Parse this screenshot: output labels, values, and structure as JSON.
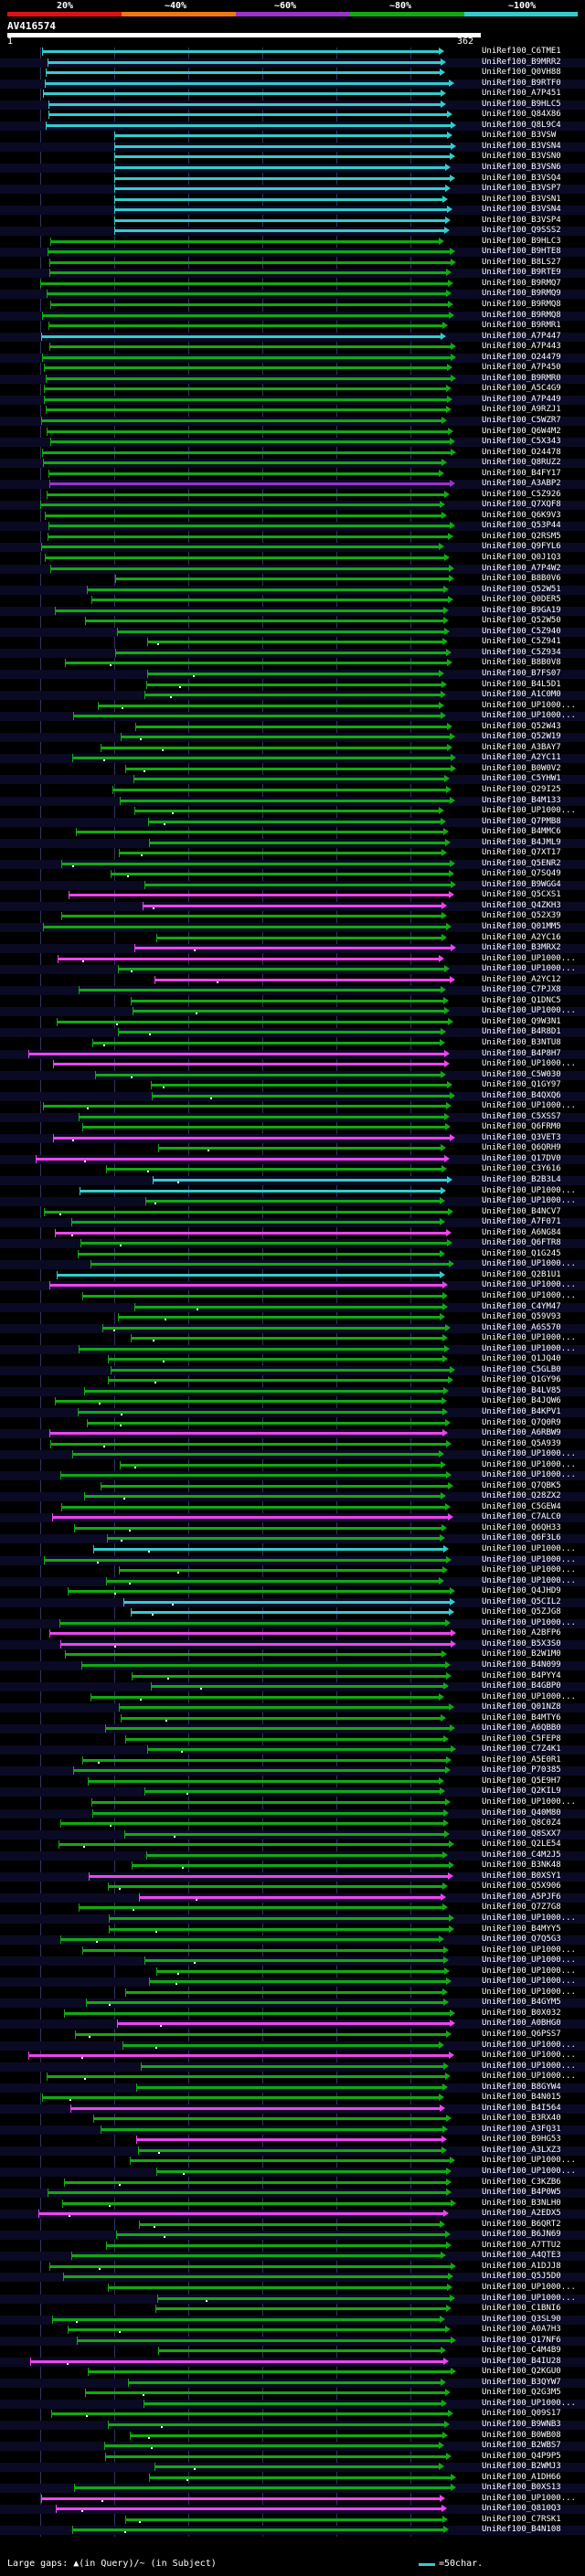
{
  "scale": {
    "labels": [
      "20%",
      "~40%",
      "~60%",
      "~80%",
      "~100%"
    ],
    "colors": [
      "#dd1111",
      "#ee7711",
      "#9933cc",
      "#11aa11",
      "#33cccc"
    ]
  },
  "query": {
    "name": "AV416574",
    "start": "1",
    "end": "362"
  },
  "legend": {
    "left_text": "Large gaps: ▲(in Query)/~ (in Subject)",
    "right_text": "=50char."
  },
  "hits": [
    {
      "label": "UniRef100_C6TME1",
      "color": "#33cccc"
    },
    {
      "label": "UniRef100_B9MRR2",
      "color": "#33cccc"
    },
    {
      "label": "UniRef100_Q0VH88",
      "color": "#33cccc"
    },
    {
      "label": "UniRef100_B9RTF0",
      "color": "#33cccc"
    },
    {
      "label": "UniRef100_A7P451",
      "color": "#33cccc"
    },
    {
      "label": "UniRef100_B9HLC5",
      "color": "#33cccc"
    },
    {
      "label": "UniRef100_Q84X86",
      "color": "#33cccc"
    },
    {
      "label": "UniRef100_Q8L9C4",
      "color": "#33cccc"
    },
    {
      "label": "UniRef100_B3VSW",
      "color": "#33cccc"
    },
    {
      "label": "UniRef100_B3VSN4",
      "color": "#33cccc"
    },
    {
      "label": "UniRef100_B3VSN0",
      "color": "#33cccc"
    },
    {
      "label": "UniRef100_B3VSN6",
      "color": "#33cccc"
    },
    {
      "label": "UniRef100_B3VSQ4",
      "color": "#33cccc"
    },
    {
      "label": "UniRef100_B3VSP7",
      "color": "#33cccc"
    },
    {
      "label": "UniRef100_B3VSN1",
      "color": "#33cccc"
    },
    {
      "label": "UniRef100_B3VSN4",
      "color": "#33cccc"
    },
    {
      "label": "UniRef100_B3VSP4",
      "color": "#33cccc"
    },
    {
      "label": "UniRef100_Q9SSS2",
      "color": "#33cccc"
    },
    {
      "label": "UniRef100_B9HLC3",
      "color": "#11aa11"
    },
    {
      "label": "UniRef100_B9HTE8",
      "color": "#11aa11"
    },
    {
      "label": "UniRef100_B8LS27",
      "color": "#11aa11"
    },
    {
      "label": "UniRef100_B9RTE9",
      "color": "#11aa11"
    },
    {
      "label": "UniRef100_B9RMQ7",
      "color": "#11aa11"
    },
    {
      "label": "UniRef100_B9RMQ9",
      "color": "#11aa11"
    },
    {
      "label": "UniRef100_B9RMQ8",
      "color": "#11aa11"
    },
    {
      "label": "UniRef100_B9RMQ8",
      "color": "#11aa11"
    },
    {
      "label": "UniRef100_B9RMR1",
      "color": "#11aa11"
    },
    {
      "label": "UniRef100_A7P447",
      "color": "#33cccc"
    },
    {
      "label": "UniRef100_A7P443",
      "color": "#11aa11"
    },
    {
      "label": "UniRef100_O24479",
      "color": "#11aa11"
    },
    {
      "label": "UniRef100_A7P450",
      "color": "#11aa11"
    },
    {
      "label": "UniRef100_B9RMR0",
      "color": "#11aa11"
    },
    {
      "label": "UniRef100_A5C4G9",
      "color": "#11aa11"
    },
    {
      "label": "UniRef100_A7P449",
      "color": "#11aa11"
    },
    {
      "label": "UniRef100_A9RZJ1",
      "color": "#11aa11"
    },
    {
      "label": "UniRef100_C5WZR7",
      "color": "#11aa11"
    },
    {
      "label": "UniRef100_Q6W4M2",
      "color": "#11aa11"
    },
    {
      "label": "UniRef100_C5X343",
      "color": "#11aa11"
    },
    {
      "label": "UniRef100_O24478",
      "color": "#11aa11"
    },
    {
      "label": "UniRef100_Q8RUZ2",
      "color": "#11aa11"
    },
    {
      "label": "UniRef100_B4FY17",
      "color": "#11aa11"
    },
    {
      "label": "UniRef100_A3ABP2",
      "color": "#9933cc"
    },
    {
      "label": "UniRef100_C5Z926",
      "color": "#11aa11"
    },
    {
      "label": "UniRef100_Q7XQF8",
      "color": "#11aa11"
    },
    {
      "label": "UniRef100_Q6K9V3",
      "color": "#11aa11"
    },
    {
      "label": "UniRef100_Q53P44",
      "color": "#11aa11"
    },
    {
      "label": "UniRef100_Q2RSM5",
      "color": "#11aa11"
    },
    {
      "label": "UniRef100_Q9FYL6",
      "color": "#11aa11"
    },
    {
      "label": "UniRef100_Q0J1Q3",
      "color": "#11aa11"
    },
    {
      "label": "UniRef100_A7P4W2",
      "color": "#11aa11"
    },
    {
      "label": "UniRef100_B8B0V6",
      "color": "#11aa11"
    },
    {
      "label": "UniRef100_Q52W51",
      "color": "#11aa11"
    },
    {
      "label": "UniRef100_Q0DER5",
      "color": "#11aa11"
    },
    {
      "label": "UniRef100_B9GA19",
      "color": "#11aa11"
    },
    {
      "label": "UniRef100_Q52W50",
      "color": "#11aa11"
    },
    {
      "label": "UniRef100_C5Z940",
      "color": "#11aa11"
    },
    {
      "label": "UniRef100_C5Z941",
      "color": "#11aa11"
    },
    {
      "label": "UniRef100_C5Z934",
      "color": "#11aa11"
    },
    {
      "label": "UniRef100_B8B0V8",
      "color": "#11aa11"
    },
    {
      "label": "UniRef100_B7FS07",
      "color": "#11aa11"
    },
    {
      "label": "UniRef100_B4L5D1",
      "color": "#11aa11"
    },
    {
      "label": "UniRef100_A1C0M0",
      "color": "#11aa11"
    },
    {
      "label": "UniRef100_UP1000...",
      "color": "#11aa11"
    },
    {
      "label": "UniRef100_UP1000...",
      "color": "#11aa11"
    },
    {
      "label": "UniRef100_Q52W43",
      "color": "#11aa11"
    },
    {
      "label": "UniRef100_Q52W19",
      "color": "#11aa11"
    },
    {
      "label": "UniRef100_A3BAY7",
      "color": "#11aa11"
    },
    {
      "label": "UniRef100_A2YC11",
      "color": "#11aa11"
    },
    {
      "label": "UniRef100_B0W0V2",
      "color": "#11aa11"
    },
    {
      "label": "UniRef100_C5YHW1",
      "color": "#11aa11"
    },
    {
      "label": "UniRef100_Q29I25",
      "color": "#11aa11"
    },
    {
      "label": "UniRef100_B4M133",
      "color": "#11aa11"
    },
    {
      "label": "UniRef100_UP1000...",
      "color": "#11aa11"
    },
    {
      "label": "UniRef100_Q7PMB8",
      "color": "#11aa11"
    },
    {
      "label": "UniRef100_B4MMC6",
      "color": "#11aa11"
    },
    {
      "label": "UniRef100_B4JML9",
      "color": "#11aa11"
    },
    {
      "label": "UniRef100_Q7XT17",
      "color": "#11aa11"
    },
    {
      "label": "UniRef100_Q5ENR2",
      "color": "#11aa11"
    },
    {
      "label": "UniRef100_Q7SQ49",
      "color": "#11aa11"
    },
    {
      "label": "UniRef100_B9WGG4",
      "color": "#11aa11"
    },
    {
      "label": "UniRef100_Q5CXS1",
      "color": "#ee44ee"
    },
    {
      "label": "UniRef100_Q4ZKH3",
      "color": "#ee44ee"
    },
    {
      "label": "UniRef100_Q52X39",
      "color": "#11aa11"
    },
    {
      "label": "UniRef100_Q01MM5",
      "color": "#11aa11"
    },
    {
      "label": "UniRef100_A2YC16",
      "color": "#11aa11"
    },
    {
      "label": "UniRef100_B3MRX2",
      "color": "#ee44ee"
    },
    {
      "label": "UniRef100_UP1000...",
      "color": "#ee44ee"
    },
    {
      "label": "UniRef100_UP1000...",
      "color": "#11aa11"
    },
    {
      "label": "UniRef100_A2YC12",
      "color": "#ee44ee"
    },
    {
      "label": "UniRef100_C7PJX8",
      "color": "#11aa11"
    },
    {
      "label": "UniRef100_Q1DNC5",
      "color": "#11aa11"
    },
    {
      "label": "UniRef100_UP1000...",
      "color": "#11aa11"
    },
    {
      "label": "UniRef100_Q9W3N1",
      "color": "#11aa11"
    },
    {
      "label": "UniRef100_B4R8D1",
      "color": "#11aa11"
    },
    {
      "label": "UniRef100_B3NTU8",
      "color": "#11aa11"
    },
    {
      "label": "UniRef100_B4P8H7",
      "color": "#ee44ee"
    },
    {
      "label": "UniRef100_UP1000...",
      "color": "#ee44ee"
    },
    {
      "label": "UniRef100_C5W030",
      "color": "#11aa11"
    },
    {
      "label": "UniRef100_Q1GY97",
      "color": "#11aa11"
    },
    {
      "label": "UniRef100_B4QXQ6",
      "color": "#11aa11"
    },
    {
      "label": "UniRef100_UP1000...",
      "color": "#11aa11"
    },
    {
      "label": "UniRef100_C5XSS7",
      "color": "#11aa11"
    },
    {
      "label": "UniRef100_Q6FRM0",
      "color": "#11aa11"
    },
    {
      "label": "UniRef100_Q3VET3",
      "color": "#ee44ee"
    },
    {
      "label": "UniRef100_Q6QRH9",
      "color": "#11aa11"
    },
    {
      "label": "UniRef100_Q17DV0",
      "color": "#ee44ee"
    },
    {
      "label": "UniRef100_C3Y616",
      "color": "#11aa11"
    },
    {
      "label": "UniRef100_B2B3L4",
      "color": "#33cccc"
    },
    {
      "label": "UniRef100_UP1000...",
      "color": "#33cccc"
    },
    {
      "label": "UniRef100_UP1000...",
      "color": "#11aa11"
    },
    {
      "label": "UniRef100_B4NCV7",
      "color": "#11aa11"
    },
    {
      "label": "UniRef100_A7F071",
      "color": "#11aa11"
    },
    {
      "label": "UniRef100_A6NG84",
      "color": "#ee44ee"
    },
    {
      "label": "UniRef100_Q6FTR8",
      "color": "#11aa11"
    },
    {
      "label": "UniRef100_Q1G245",
      "color": "#11aa11"
    },
    {
      "label": "UniRef100_UP1000...",
      "color": "#11aa11"
    },
    {
      "label": "UniRef100_Q2B1U1",
      "color": "#33cccc"
    },
    {
      "label": "UniRef100_UP1000...",
      "color": "#ee44ee"
    },
    {
      "label": "UniRef100_UP1000...",
      "color": "#11aa11"
    },
    {
      "label": "UniRef100_C4YM47",
      "color": "#11aa11"
    },
    {
      "label": "UniRef100_Q59V93",
      "color": "#11aa11"
    },
    {
      "label": "UniRef100_A6S570",
      "color": "#11aa11"
    },
    {
      "label": "UniRef100_UP1000...",
      "color": "#11aa11"
    },
    {
      "label": "UniRef100_UP1000...",
      "color": "#11aa11"
    },
    {
      "label": "UniRef100_Q1JQ40",
      "color": "#11aa11"
    },
    {
      "label": "UniRef100_C5GLB0",
      "color": "#11aa11"
    },
    {
      "label": "UniRef100_Q1GY96",
      "color": "#11aa11"
    },
    {
      "label": "UniRef100_B4LV85",
      "color": "#11aa11"
    },
    {
      "label": "UniRef100_B4JQW6",
      "color": "#11aa11"
    },
    {
      "label": "UniRef100_B4KPV1",
      "color": "#11aa11"
    },
    {
      "label": "UniRef100_Q7Q0R9",
      "color": "#11aa11"
    },
    {
      "label": "UniRef100_A6RBW9",
      "color": "#ee44ee"
    },
    {
      "label": "UniRef100_Q5A939",
      "color": "#11aa11"
    },
    {
      "label": "UniRef100_UP1000...",
      "color": "#11aa11"
    },
    {
      "label": "UniRef100_UP1000...",
      "color": "#11aa11"
    },
    {
      "label": "UniRef100_UP1000...",
      "color": "#11aa11"
    },
    {
      "label": "UniRef100_Q7QBK5",
      "color": "#11aa11"
    },
    {
      "label": "UniRef100_Q28ZX2",
      "color": "#11aa11"
    },
    {
      "label": "UniRef100_C5GEW4",
      "color": "#11aa11"
    },
    {
      "label": "UniRef100_C7ALC0",
      "color": "#ee44ee"
    },
    {
      "label": "UniRef100_Q6QH33",
      "color": "#11aa11"
    },
    {
      "label": "UniRef100_Q6F3L6",
      "color": "#11aa11"
    },
    {
      "label": "UniRef100_UP1000...",
      "color": "#33cccc"
    },
    {
      "label": "UniRef100_UP1000...",
      "color": "#11aa11"
    },
    {
      "label": "UniRef100_UP1000...",
      "color": "#11aa11"
    },
    {
      "label": "UniRef100_UP1000...",
      "color": "#11aa11"
    },
    {
      "label": "UniRef100_Q4JHD9",
      "color": "#11aa11"
    },
    {
      "label": "UniRef100_Q5CIL2",
      "color": "#33cccc"
    },
    {
      "label": "UniRef100_Q5ZJG8",
      "color": "#33cccc"
    },
    {
      "label": "UniRef100_UP1000...",
      "color": "#11aa11"
    },
    {
      "label": "UniRef100_A2BFP6",
      "color": "#ee44ee"
    },
    {
      "label": "UniRef100_B5X3S0",
      "color": "#ee44ee"
    },
    {
      "label": "UniRef100_B2W1M0",
      "color": "#11aa11"
    },
    {
      "label": "UniRef100_B4N099",
      "color": "#11aa11"
    },
    {
      "label": "UniRef100_B4PYY4",
      "color": "#11aa11"
    },
    {
      "label": "UniRef100_B4GBP0",
      "color": "#11aa11"
    },
    {
      "label": "UniRef100_UP1000...",
      "color": "#11aa11"
    },
    {
      "label": "UniRef100_Q01NZ8",
      "color": "#11aa11"
    },
    {
      "label": "UniRef100_B4MTY6",
      "color": "#11aa11"
    },
    {
      "label": "UniRef100_A6QBB0",
      "color": "#11aa11"
    },
    {
      "label": "UniRef100_C5FEP8",
      "color": "#11aa11"
    },
    {
      "label": "UniRef100_C7Z4K1",
      "color": "#11aa11"
    },
    {
      "label": "UniRef100_A5E0R1",
      "color": "#11aa11"
    },
    {
      "label": "UniRef100_P70385",
      "color": "#11aa11"
    },
    {
      "label": "UniRef100_Q5E9H7",
      "color": "#11aa11"
    },
    {
      "label": "UniRef100_Q2KIL9",
      "color": "#11aa11"
    },
    {
      "label": "UniRef100_UP1000...",
      "color": "#11aa11"
    },
    {
      "label": "UniRef100_Q40M80",
      "color": "#11aa11"
    },
    {
      "label": "UniRef100_Q8C0Z4",
      "color": "#11aa11"
    },
    {
      "label": "UniRef100_Q8SXX7",
      "color": "#11aa11"
    },
    {
      "label": "UniRef100_Q2LE54",
      "color": "#11aa11"
    },
    {
      "label": "UniRef100_C4M2J5",
      "color": "#11aa11"
    },
    {
      "label": "UniRef100_B3NK48",
      "color": "#11aa11"
    },
    {
      "label": "UniRef100_B0XSY1",
      "color": "#ee44ee"
    },
    {
      "label": "UniRef100_Q5X906",
      "color": "#11aa11"
    },
    {
      "label": "UniRef100_A5PJF6",
      "color": "#ee44ee"
    },
    {
      "label": "UniRef100_Q7Z7G8",
      "color": "#11aa11"
    },
    {
      "label": "UniRef100_UP1000...",
      "color": "#11aa11"
    },
    {
      "label": "UniRef100_B4MYY5",
      "color": "#11aa11"
    },
    {
      "label": "UniRef100_Q7Q5G3",
      "color": "#11aa11"
    },
    {
      "label": "UniRef100_UP1000...",
      "color": "#11aa11"
    },
    {
      "label": "UniRef100_UP1000...",
      "color": "#11aa11"
    },
    {
      "label": "UniRef100_UP1000...",
      "color": "#11aa11"
    },
    {
      "label": "UniRef100_UP1000...",
      "color": "#11aa11"
    },
    {
      "label": "UniRef100_UP1000...",
      "color": "#11aa11"
    },
    {
      "label": "UniRef100_B4GYM5",
      "color": "#11aa11"
    },
    {
      "label": "UniRef100_B0X032",
      "color": "#11aa11"
    },
    {
      "label": "UniRef100_A0BHG0",
      "color": "#ee44ee"
    },
    {
      "label": "UniRef100_Q6PSS7",
      "color": "#11aa11"
    },
    {
      "label": "UniRef100_UP1000...",
      "color": "#11aa11"
    },
    {
      "label": "UniRef100_UP1000...",
      "color": "#ee44ee"
    },
    {
      "label": "UniRef100_UP1000...",
      "color": "#11aa11"
    },
    {
      "label": "UniRef100_UP1000...",
      "color": "#11aa11"
    },
    {
      "label": "UniRef100_B8GYW4",
      "color": "#11aa11"
    },
    {
      "label": "UniRef100_B4N015",
      "color": "#11aa11"
    },
    {
      "label": "UniRef100_B4I564",
      "color": "#ee44ee"
    },
    {
      "label": "UniRef100_B3RX40",
      "color": "#11aa11"
    },
    {
      "label": "UniRef100_A3FQ31",
      "color": "#11aa11"
    },
    {
      "label": "UniRef100_B9HG53",
      "color": "#ee44ee"
    },
    {
      "label": "UniRef100_A3LXZ3",
      "color": "#11aa11"
    },
    {
      "label": "UniRef100_UP1000...",
      "color": "#11aa11"
    },
    {
      "label": "UniRef100_UP1000...",
      "color": "#11aa11"
    },
    {
      "label": "UniRef100_C3KZB6",
      "color": "#11aa11"
    },
    {
      "label": "UniRef100_B4P0W5",
      "color": "#11aa11"
    },
    {
      "label": "UniRef100_B3NLH0",
      "color": "#11aa11"
    },
    {
      "label": "UniRef100_A2EDX5",
      "color": "#ee44ee"
    },
    {
      "label": "UniRef100_B6QRT2",
      "color": "#11aa11"
    },
    {
      "label": "UniRef100_B6JN69",
      "color": "#11aa11"
    },
    {
      "label": "UniRef100_A7TTU2",
      "color": "#11aa11"
    },
    {
      "label": "UniRef100_A4QTE3",
      "color": "#11aa11"
    },
    {
      "label": "UniRef100_A1DJJ8",
      "color": "#11aa11"
    },
    {
      "label": "UniRef100_Q5J5D0",
      "color": "#11aa11"
    },
    {
      "label": "UniRef100_UP1000...",
      "color": "#11aa11"
    },
    {
      "label": "UniRef100_UP1000...",
      "color": "#11aa11"
    },
    {
      "label": "UniRef100_C1BNI6",
      "color": "#11aa11"
    },
    {
      "label": "UniRef100_Q3SL90",
      "color": "#11aa11"
    },
    {
      "label": "UniRef100_A0A7H3",
      "color": "#11aa11"
    },
    {
      "label": "UniRef100_Q17NF6",
      "color": "#11aa11"
    },
    {
      "label": "UniRef100_C4M4B9",
      "color": "#11aa11"
    },
    {
      "label": "UniRef100_B4IU28",
      "color": "#ee44ee"
    },
    {
      "label": "UniRef100_Q2KGU0",
      "color": "#11aa11"
    },
    {
      "label": "UniRef100_B3QYW7",
      "color": "#11aa11"
    },
    {
      "label": "UniRef100_Q2G3M5",
      "color": "#11aa11"
    },
    {
      "label": "UniRef100_UP1000...",
      "color": "#11aa11"
    },
    {
      "label": "UniRef100_Q09S17",
      "color": "#11aa11"
    },
    {
      "label": "UniRef100_B9WNB3",
      "color": "#11aa11"
    },
    {
      "label": "UniRef100_B0WB08",
      "color": "#11aa11"
    },
    {
      "label": "UniRef100_B2WBS7",
      "color": "#11aa11"
    },
    {
      "label": "UniRef100_Q4P9P5",
      "color": "#11aa11"
    },
    {
      "label": "UniRef100_B2WMJ3",
      "color": "#11aa11"
    },
    {
      "label": "UniRef100_A1DH66",
      "color": "#11aa11"
    },
    {
      "label": "UniRef100_B0XS13",
      "color": "#11aa11"
    },
    {
      "label": "UniRef100_UP1000...",
      "color": "#ee44ee"
    },
    {
      "label": "UniRef100_Q810Q3",
      "color": "#ee44ee"
    },
    {
      "label": "UniRef100_C7RSK1",
      "color": "#11aa11"
    },
    {
      "label": "UniRef100_B4N108",
      "color": "#11aa11"
    }
  ]
}
